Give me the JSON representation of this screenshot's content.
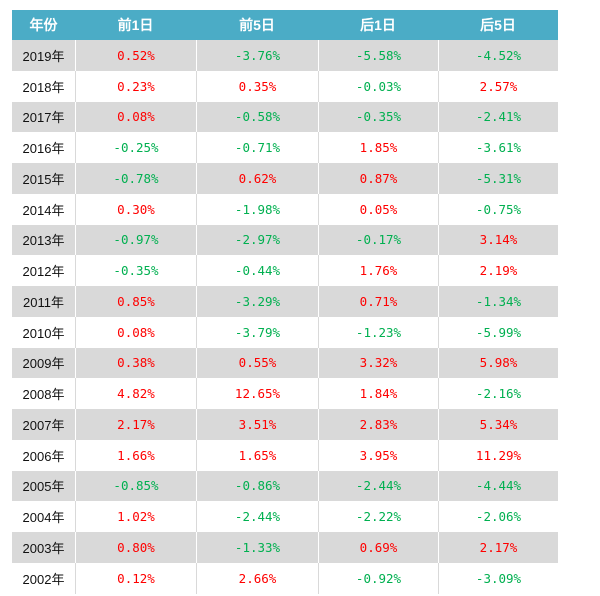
{
  "colors": {
    "header_bg": "#4bacc6",
    "header_text": "#ffffff",
    "stripe_bg": "#d9d9d9",
    "positive": "#ff0000",
    "negative": "#00b050"
  },
  "chart_data": {
    "type": "table",
    "columns": [
      "年份",
      "前1日",
      "前5日",
      "后1日",
      "后5日"
    ],
    "rows": [
      [
        "2019年",
        "0.52%",
        "-3.76%",
        "-5.58%",
        "-4.52%"
      ],
      [
        "2018年",
        "0.23%",
        "0.35%",
        "-0.03%",
        "2.57%"
      ],
      [
        "2017年",
        "0.08%",
        "-0.58%",
        "-0.35%",
        "-2.41%"
      ],
      [
        "2016年",
        "-0.25%",
        "-0.71%",
        "1.85%",
        "-3.61%"
      ],
      [
        "2015年",
        "-0.78%",
        "0.62%",
        "0.87%",
        "-5.31%"
      ],
      [
        "2014年",
        "0.30%",
        "-1.98%",
        "0.05%",
        "-0.75%"
      ],
      [
        "2013年",
        "-0.97%",
        "-2.97%",
        "-0.17%",
        "3.14%"
      ],
      [
        "2012年",
        "-0.35%",
        "-0.44%",
        "1.76%",
        "2.19%"
      ],
      [
        "2011年",
        "0.85%",
        "-3.29%",
        "0.71%",
        "-1.34%"
      ],
      [
        "2010年",
        "0.08%",
        "-3.79%",
        "-1.23%",
        "-5.99%"
      ],
      [
        "2009年",
        "0.38%",
        "0.55%",
        "3.32%",
        "5.98%"
      ],
      [
        "2008年",
        "4.82%",
        "12.65%",
        "1.84%",
        "-2.16%"
      ],
      [
        "2007年",
        "2.17%",
        "3.51%",
        "2.83%",
        "5.34%"
      ],
      [
        "2006年",
        "1.66%",
        "1.65%",
        "3.95%",
        "11.29%"
      ],
      [
        "2005年",
        "-0.85%",
        "-0.86%",
        "-2.44%",
        "-4.44%"
      ],
      [
        "2004年",
        "1.02%",
        "-2.44%",
        "-2.22%",
        "-2.06%"
      ],
      [
        "2003年",
        "0.80%",
        "-1.33%",
        "0.69%",
        "2.17%"
      ],
      [
        "2002年",
        "0.12%",
        "2.66%",
        "-0.92%",
        "-3.09%"
      ]
    ]
  }
}
